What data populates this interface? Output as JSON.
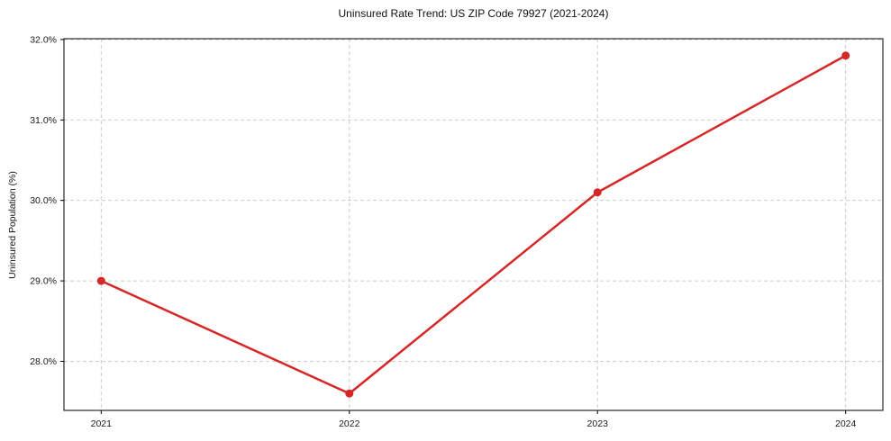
{
  "chart_data": {
    "type": "line",
    "title": "Uninsured Rate Trend: US ZIP Code 79927 (2021-2024)",
    "xlabel": "",
    "ylabel": "Uninsured Population (%)",
    "categories": [
      "2021",
      "2022",
      "2023",
      "2024"
    ],
    "x": [
      2021,
      2022,
      2023,
      2024
    ],
    "series": [
      {
        "values": [
          29.0,
          27.6,
          30.1,
          31.8
        ]
      }
    ],
    "xlim": [
      2020.85,
      2024.15
    ],
    "ylim": [
      27.39,
      32.01
    ],
    "y_ticks": [
      28,
      29,
      30,
      31,
      32
    ],
    "y_tick_labels": [
      "28.0%",
      "29.0%",
      "30.0%",
      "31.0%",
      "32.0%"
    ],
    "grid": true,
    "grid_style": "dashed",
    "legend_position": "none",
    "line_color": "#d62728",
    "marker": "circle",
    "grid_color": "#cccccc",
    "axis_color": "#000000"
  }
}
